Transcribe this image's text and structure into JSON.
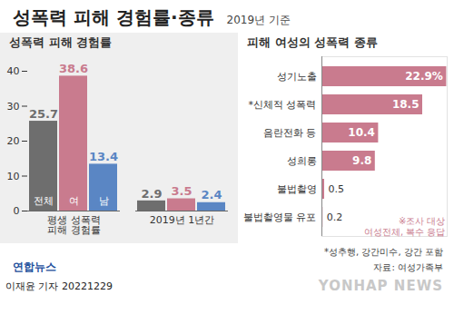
{
  "title": "성폭력 피해 경험률·종류",
  "subtitle": "2019년 기준",
  "chart_data": [
    {
      "type": "bar",
      "title": "성폭력 피해 경험률",
      "categories": [
        "평생 성폭력\n피해 경험률",
        "2019년 1년간"
      ],
      "series": [
        {
          "name": "전체",
          "color": "#6e6e6e",
          "values": [
            25.7,
            2.9
          ]
        },
        {
          "name": "여",
          "color": "#c97b8e",
          "values": [
            38.6,
            3.5
          ]
        },
        {
          "name": "남",
          "color": "#5a86c4",
          "values": [
            13.4,
            2.4
          ]
        }
      ],
      "ylim": [
        0,
        40
      ],
      "yticks": [
        0,
        10,
        20,
        30,
        40
      ],
      "grid": false,
      "data_labels": true
    },
    {
      "type": "bar",
      "orientation": "horizontal",
      "title": "피해 여성의 성폭력 종류",
      "categories": [
        "성기노출",
        "*신체적 성폭력",
        "음란전화 등",
        "성희롱",
        "불법촬영",
        "불법촬영물 유포"
      ],
      "values": [
        22.9,
        18.5,
        10.4,
        9.8,
        0.5,
        0.2
      ],
      "value_labels": [
        "22.9%",
        "18.5",
        "10.4",
        "9.8",
        "0.5",
        "0.2"
      ],
      "color": "#c97b8e",
      "xlim": [
        0,
        23
      ],
      "tick_labels": "y",
      "data_labels": true,
      "annotations": [
        "※조사 대상\n여성전체, 복수 응답"
      ]
    }
  ],
  "note": "*성추행, 강간미수, 강간 포함",
  "source": "자료: 여성가족부",
  "logo": "연합뉴스",
  "credit": "이재윤 기자 20221229",
  "watermark": "YONHAP NEWS"
}
